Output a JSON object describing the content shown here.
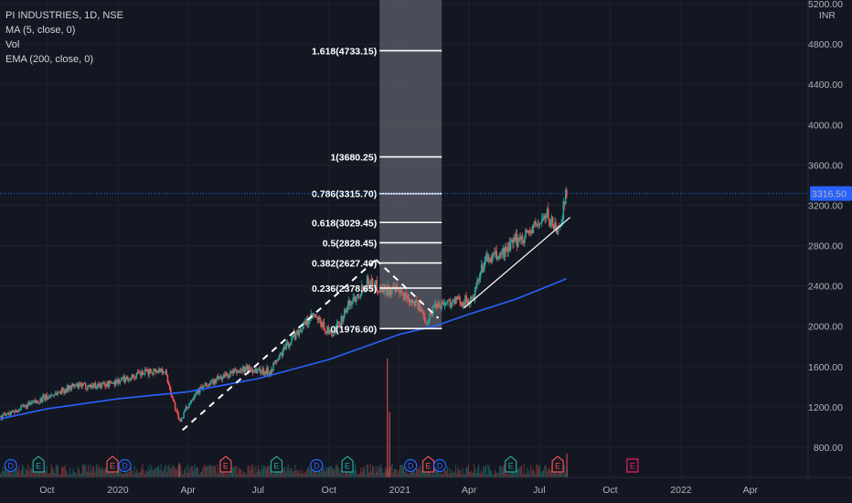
{
  "legend": {
    "symbol": "PI INDUSTRIES, 1D, NSE",
    "ma": "MA (5, close, 0)",
    "vol": "Vol",
    "ema": "EMA (200, close, 0)"
  },
  "colors": {
    "background": "#131722",
    "up_candle": "#26a69a",
    "down_candle": "#ef5350",
    "ema_line": "#2962ff",
    "last_price_tag": "#2962ff",
    "fib_band": "#5d606b",
    "dividend_marker": "#2962ff",
    "earnings_marker": "#26a69a",
    "earnings_marker_down": "#ef5350",
    "future_earnings_marker": "#e91e63"
  },
  "chart_data": {
    "type": "candlestick",
    "y_axis": {
      "currency": "INR",
      "ticks": [
        "5200.00",
        "4800.00",
        "4400.00",
        "4000.00",
        "3600.00",
        "3200.00",
        "2800.00",
        "2400.00",
        "2000.00",
        "1600.00",
        "1200.00",
        "800.00"
      ],
      "range": [
        650,
        5300
      ]
    },
    "x_axis": {
      "range": [
        "2019-08-01",
        "2022-06-15"
      ],
      "ticks": [
        {
          "date": "2019-10-01",
          "label": "Oct"
        },
        {
          "date": "2020-01-01",
          "label": "2020"
        },
        {
          "date": "2020-04-01",
          "label": "Apr"
        },
        {
          "date": "2020-07-01",
          "label": "Jul"
        },
        {
          "date": "2020-10-01",
          "label": "Oct"
        },
        {
          "date": "2021-01-01",
          "label": "2021"
        },
        {
          "date": "2021-04-01",
          "label": "Apr"
        },
        {
          "date": "2021-07-01",
          "label": "Jul"
        },
        {
          "date": "2021-10-01",
          "label": "Oct"
        },
        {
          "date": "2022-01-01",
          "label": "2022"
        },
        {
          "date": "2022-04-01",
          "label": "Apr"
        }
      ]
    },
    "last_price": {
      "label": "3316.50",
      "value": 3316.5
    },
    "price_path": [
      {
        "date": "2019-08-01",
        "close": 1100
      },
      {
        "date": "2019-09-01",
        "close": 1200
      },
      {
        "date": "2019-10-01",
        "close": 1300
      },
      {
        "date": "2019-11-01",
        "close": 1400
      },
      {
        "date": "2019-12-15",
        "close": 1420
      },
      {
        "date": "2020-01-15",
        "close": 1490
      },
      {
        "date": "2020-02-15",
        "close": 1560
      },
      {
        "date": "2020-03-01",
        "close": 1570
      },
      {
        "date": "2020-03-20",
        "close": 1050
      },
      {
        "date": "2020-04-10",
        "close": 1350
      },
      {
        "date": "2020-05-15",
        "close": 1500
      },
      {
        "date": "2020-06-15",
        "close": 1580
      },
      {
        "date": "2020-07-15",
        "close": 1550
      },
      {
        "date": "2020-08-15",
        "close": 1900
      },
      {
        "date": "2020-09-10",
        "close": 2100
      },
      {
        "date": "2020-10-05",
        "close": 1900
      },
      {
        "date": "2020-10-25",
        "close": 2200
      },
      {
        "date": "2020-11-20",
        "close": 2450
      },
      {
        "date": "2020-12-05",
        "close": 2380
      },
      {
        "date": "2020-12-25",
        "close": 2350
      },
      {
        "date": "2021-01-20",
        "close": 2250
      },
      {
        "date": "2021-02-05",
        "close": 2050
      },
      {
        "date": "2021-02-15",
        "close": 2220
      },
      {
        "date": "2021-03-15",
        "close": 2250
      },
      {
        "date": "2021-04-05",
        "close": 2250
      },
      {
        "date": "2021-04-20",
        "close": 2650
      },
      {
        "date": "2021-05-10",
        "close": 2700
      },
      {
        "date": "2021-06-01",
        "close": 2850
      },
      {
        "date": "2021-06-20",
        "close": 2950
      },
      {
        "date": "2021-07-10",
        "close": 3100
      },
      {
        "date": "2021-07-25",
        "close": 2950
      },
      {
        "date": "2021-08-05",
        "close": 3316.5
      }
    ],
    "ema_path": [
      {
        "date": "2019-08-01",
        "value": 1080
      },
      {
        "date": "2019-10-01",
        "value": 1180
      },
      {
        "date": "2020-01-01",
        "value": 1280
      },
      {
        "date": "2020-04-01",
        "value": 1350
      },
      {
        "date": "2020-07-01",
        "value": 1480
      },
      {
        "date": "2020-10-01",
        "value": 1670
      },
      {
        "date": "2021-01-01",
        "value": 1920
      },
      {
        "date": "2021-02-15",
        "value": 2000
      },
      {
        "date": "2021-04-01",
        "value": 2120
      },
      {
        "date": "2021-06-01",
        "value": 2270
      },
      {
        "date": "2021-08-05",
        "value": 2470
      }
    ],
    "fibonacci": {
      "start_date": "2020-12-01",
      "end_date": "2021-02-28",
      "levels": [
        {
          "label": "1.618(4733.15)",
          "value": 4733.15
        },
        {
          "label": "1(3680.25)",
          "value": 3680.25
        },
        {
          "label": "0.786(3315.70)",
          "value": 3315.7
        },
        {
          "label": "0.618(3029.45)",
          "value": 3029.45
        },
        {
          "label": "0.5(2828.45)",
          "value": 2828.45
        },
        {
          "label": "0.382(2627.40)",
          "value": 2627.4
        },
        {
          "label": "0.236(2378.65)",
          "value": 2378.65
        },
        {
          "label": "0(1976.60)",
          "value": 1976.6
        }
      ]
    },
    "trendlines": [
      {
        "style": "dashed",
        "from": {
          "date": "2020-03-25",
          "value": 970
        },
        "to": {
          "date": "2020-12-01",
          "value": 2660
        }
      },
      {
        "style": "dashed",
        "from": {
          "date": "2020-12-01",
          "value": 2660
        },
        "to": {
          "date": "2021-02-20",
          "value": 2080
        }
      },
      {
        "style": "solid",
        "from": {
          "date": "2021-03-25",
          "value": 2180
        },
        "to": {
          "date": "2021-08-10",
          "value": 3080
        }
      }
    ],
    "events": [
      {
        "date": "2019-08-15",
        "letter": "D",
        "kind": "dividend"
      },
      {
        "date": "2019-09-20",
        "letter": "E",
        "kind": "earnings"
      },
      {
        "date": "2019-12-25",
        "letter": "E",
        "kind": "earnings-down"
      },
      {
        "date": "2020-01-10",
        "letter": "D",
        "kind": "dividend"
      },
      {
        "date": "2020-05-20",
        "letter": "E",
        "kind": "earnings-down"
      },
      {
        "date": "2020-07-25",
        "letter": "E",
        "kind": "earnings"
      },
      {
        "date": "2020-09-15",
        "letter": "D",
        "kind": "dividend"
      },
      {
        "date": "2020-10-25",
        "letter": "E",
        "kind": "earnings"
      },
      {
        "date": "2021-01-15",
        "letter": "D",
        "kind": "dividend"
      },
      {
        "date": "2021-02-07",
        "letter": "E",
        "kind": "earnings-down"
      },
      {
        "date": "2021-02-22",
        "letter": "D",
        "kind": "dividend"
      },
      {
        "date": "2021-05-25",
        "letter": "E",
        "kind": "earnings"
      },
      {
        "date": "2021-07-25",
        "letter": "E",
        "kind": "earnings-down"
      },
      {
        "date": "2021-10-30",
        "letter": "E",
        "kind": "future"
      }
    ],
    "volume": {
      "baseline": "small",
      "spikes": [
        {
          "date": "2020-12-15",
          "relative": 1.0
        },
        {
          "date": "2020-12-18",
          "relative": 0.55
        },
        {
          "date": "2021-08-05",
          "relative": 0.2
        },
        {
          "date": "2020-03-20",
          "relative": 0.12
        }
      ]
    }
  }
}
